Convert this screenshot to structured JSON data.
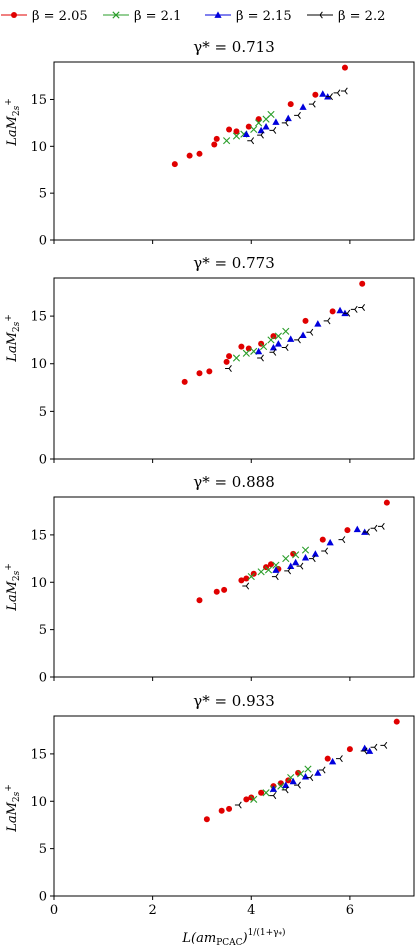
{
  "legend": [
    {
      "label": "β = 2.05",
      "color": "#e00000",
      "marker": "circle"
    },
    {
      "label": "β = 2.1",
      "color": "#2a9d2a",
      "marker": "x"
    },
    {
      "label": "β = 2.15",
      "color": "#0000dd",
      "marker": "triangle"
    },
    {
      "label": "β = 2.2",
      "color": "#000000",
      "marker": "tri-left"
    }
  ],
  "xlabel": "L(am_PCAC)^{1/(1+γ*)}",
  "ylabel": "LaM_{2s+}",
  "chart_data": [
    {
      "type": "scatter",
      "title": "γ* = 0.713",
      "xlim": [
        0,
        7.3
      ],
      "ylim": [
        0,
        19
      ],
      "xticks": [
        0,
        2,
        4,
        6
      ],
      "yticks": [
        0,
        5,
        10,
        15
      ],
      "show_xtick_labels": false,
      "series": [
        {
          "name": "β = 2.05",
          "points": [
            [
              2.45,
              8.1
            ],
            [
              2.75,
              9.0
            ],
            [
              2.95,
              9.2
            ],
            [
              3.25,
              10.2
            ],
            [
              3.3,
              10.8
            ],
            [
              3.55,
              11.8
            ],
            [
              3.7,
              11.6
            ],
            [
              3.95,
              12.1
            ],
            [
              4.15,
              12.9
            ],
            [
              4.8,
              14.5
            ],
            [
              5.3,
              15.5
            ],
            [
              5.9,
              18.4
            ]
          ]
        },
        {
          "name": "β = 2.1",
          "points": [
            [
              3.5,
              10.6
            ],
            [
              3.7,
              11.1
            ],
            [
              3.85,
              11.3
            ],
            [
              4.05,
              11.8
            ],
            [
              4.15,
              12.5
            ],
            [
              4.3,
              12.9
            ],
            [
              4.4,
              13.4
            ]
          ]
        },
        {
          "name": "β = 2.15",
          "points": [
            [
              3.9,
              11.3
            ],
            [
              4.2,
              11.7
            ],
            [
              4.3,
              12.1
            ],
            [
              4.5,
              12.6
            ],
            [
              4.75,
              13.0
            ],
            [
              5.05,
              14.2
            ],
            [
              5.45,
              15.6
            ],
            [
              5.55,
              15.3
            ]
          ]
        },
        {
          "name": "β = 2.2",
          "points": [
            [
              4.0,
              10.6
            ],
            [
              4.2,
              11.2
            ],
            [
              4.45,
              11.7
            ],
            [
              4.7,
              12.5
            ],
            [
              4.95,
              13.3
            ],
            [
              5.25,
              14.5
            ],
            [
              5.6,
              15.3
            ],
            [
              5.75,
              15.7
            ],
            [
              5.9,
              15.9
            ]
          ]
        }
      ]
    },
    {
      "type": "scatter",
      "title": "γ* = 0.773",
      "xlim": [
        0,
        7.3
      ],
      "ylim": [
        0,
        19
      ],
      "xticks": [
        0,
        2,
        4,
        6
      ],
      "yticks": [
        0,
        5,
        10,
        15
      ],
      "show_xtick_labels": false,
      "series": [
        {
          "name": "β = 2.05",
          "points": [
            [
              2.65,
              8.1
            ],
            [
              2.95,
              9.0
            ],
            [
              3.15,
              9.2
            ],
            [
              3.5,
              10.2
            ],
            [
              3.55,
              10.8
            ],
            [
              3.8,
              11.8
            ],
            [
              3.95,
              11.6
            ],
            [
              4.2,
              12.1
            ],
            [
              4.45,
              12.9
            ],
            [
              5.1,
              14.5
            ],
            [
              5.65,
              15.5
            ],
            [
              6.25,
              18.4
            ]
          ]
        },
        {
          "name": "β = 2.1",
          "points": [
            [
              3.7,
              10.6
            ],
            [
              3.9,
              11.1
            ],
            [
              4.05,
              11.3
            ],
            [
              4.25,
              11.8
            ],
            [
              4.4,
              12.5
            ],
            [
              4.55,
              12.9
            ],
            [
              4.7,
              13.4
            ]
          ]
        },
        {
          "name": "β = 2.15",
          "points": [
            [
              4.15,
              11.3
            ],
            [
              4.45,
              11.7
            ],
            [
              4.55,
              12.1
            ],
            [
              4.8,
              12.6
            ],
            [
              5.05,
              13.0
            ],
            [
              5.35,
              14.2
            ],
            [
              5.8,
              15.6
            ],
            [
              5.9,
              15.3
            ]
          ]
        },
        {
          "name": "β = 2.2",
          "points": [
            [
              3.55,
              9.5
            ],
            [
              4.2,
              10.6
            ],
            [
              4.45,
              11.2
            ],
            [
              4.7,
              11.7
            ],
            [
              4.95,
              12.5
            ],
            [
              5.2,
              13.3
            ],
            [
              5.55,
              14.5
            ],
            [
              5.95,
              15.3
            ],
            [
              6.1,
              15.7
            ],
            [
              6.25,
              15.9
            ]
          ]
        }
      ]
    },
    {
      "type": "scatter",
      "title": "γ* = 0.888",
      "xlim": [
        0,
        7.3
      ],
      "ylim": [
        0,
        19
      ],
      "xticks": [
        0,
        2,
        4,
        6
      ],
      "yticks": [
        0,
        5,
        10,
        15
      ],
      "show_xtick_labels": false,
      "series": [
        {
          "name": "β = 2.05",
          "points": [
            [
              2.95,
              8.1
            ],
            [
              3.3,
              9.0
            ],
            [
              3.45,
              9.2
            ],
            [
              3.8,
              10.2
            ],
            [
              3.9,
              10.4
            ],
            [
              4.05,
              10.9
            ],
            [
              4.3,
              11.6
            ],
            [
              4.4,
              11.9
            ],
            [
              4.55,
              11.4
            ],
            [
              4.85,
              13.0
            ],
            [
              5.45,
              14.5
            ],
            [
              5.95,
              15.5
            ],
            [
              6.75,
              18.4
            ]
          ]
        },
        {
          "name": "β = 2.1",
          "points": [
            [
              4.0,
              10.6
            ],
            [
              4.2,
              11.1
            ],
            [
              4.35,
              11.3
            ],
            [
              4.5,
              11.8
            ],
            [
              4.7,
              12.5
            ],
            [
              4.9,
              12.9
            ],
            [
              5.1,
              13.4
            ]
          ]
        },
        {
          "name": "β = 2.15",
          "points": [
            [
              4.5,
              11.3
            ],
            [
              4.8,
              11.7
            ],
            [
              4.9,
              12.1
            ],
            [
              5.1,
              12.6
            ],
            [
              5.3,
              13.0
            ],
            [
              5.6,
              14.2
            ],
            [
              6.15,
              15.6
            ],
            [
              6.3,
              15.3
            ]
          ]
        },
        {
          "name": "β = 2.2",
          "points": [
            [
              3.9,
              9.6
            ],
            [
              4.5,
              10.6
            ],
            [
              4.75,
              11.2
            ],
            [
              5.0,
              11.7
            ],
            [
              5.25,
              12.5
            ],
            [
              5.5,
              13.3
            ],
            [
              5.85,
              14.5
            ],
            [
              6.35,
              15.3
            ],
            [
              6.5,
              15.7
            ],
            [
              6.65,
              15.9
            ]
          ]
        }
      ]
    },
    {
      "type": "scatter",
      "title": "γ* = 0.933",
      "xlim": [
        0,
        7.3
      ],
      "ylim": [
        0,
        19
      ],
      "xticks": [
        0,
        2,
        4,
        6
      ],
      "yticks": [
        0,
        5,
        10,
        15
      ],
      "show_xtick_labels": true,
      "series": [
        {
          "name": "β = 2.05",
          "points": [
            [
              3.1,
              8.1
            ],
            [
              3.4,
              9.0
            ],
            [
              3.55,
              9.2
            ],
            [
              3.9,
              10.2
            ],
            [
              4.0,
              10.4
            ],
            [
              4.2,
              10.9
            ],
            [
              4.45,
              11.6
            ],
            [
              4.6,
              11.9
            ],
            [
              4.75,
              12.2
            ],
            [
              4.95,
              13.0
            ],
            [
              5.55,
              14.5
            ],
            [
              6.0,
              15.5
            ],
            [
              6.95,
              18.4
            ]
          ]
        },
        {
          "name": "β = 2.1",
          "points": [
            [
              4.05,
              10.2
            ],
            [
              4.3,
              10.9
            ],
            [
              4.45,
              11.3
            ],
            [
              4.6,
              11.6
            ],
            [
              4.8,
              12.5
            ],
            [
              5.0,
              12.9
            ],
            [
              5.15,
              13.4
            ]
          ]
        },
        {
          "name": "β = 2.15",
          "points": [
            [
              4.45,
              11.3
            ],
            [
              4.7,
              11.7
            ],
            [
              4.85,
              12.1
            ],
            [
              5.1,
              12.6
            ],
            [
              5.35,
              13.0
            ],
            [
              5.65,
              14.2
            ],
            [
              6.3,
              15.6
            ],
            [
              6.4,
              15.3
            ]
          ]
        },
        {
          "name": "β = 2.2",
          "points": [
            [
              3.75,
              9.6
            ],
            [
              4.45,
              10.6
            ],
            [
              4.7,
              11.2
            ],
            [
              4.95,
              11.7
            ],
            [
              5.2,
              12.5
            ],
            [
              5.45,
              13.3
            ],
            [
              5.8,
              14.5
            ],
            [
              6.3,
              15.3
            ],
            [
              6.5,
              15.7
            ],
            [
              6.7,
              15.9
            ]
          ]
        }
      ]
    }
  ]
}
